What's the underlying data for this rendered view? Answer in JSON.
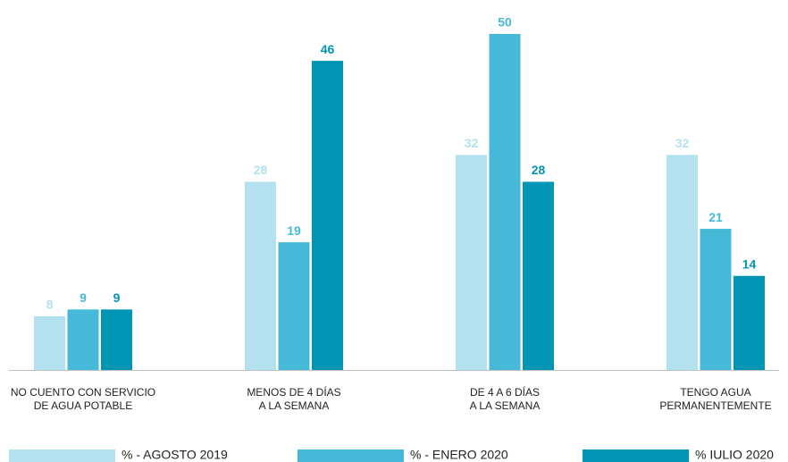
{
  "chart_data": {
    "type": "bar",
    "categories": [
      [
        "NO CUENTO CON SERVICIO",
        "DE AGUA POTABLE"
      ],
      [
        "MENOS DE 4 DÍAS",
        "A LA SEMANA"
      ],
      [
        "DE 4 A 6 DÍAS",
        "A LA SEMANA"
      ],
      [
        "TENGO AGUA",
        "PERMANENTEMENTE"
      ]
    ],
    "series": [
      {
        "name": "% - AGOSTO 2019",
        "color": "#b4e1ef",
        "values": [
          8,
          28,
          32,
          32
        ]
      },
      {
        "name": "% - ENERO 2020",
        "color": "#45b9d7",
        "values": [
          9,
          19,
          50,
          21
        ]
      },
      {
        "name": "% IULIO 2020",
        "color": "#0094b5",
        "values": [
          9,
          46,
          28,
          14
        ]
      }
    ]
  }
}
